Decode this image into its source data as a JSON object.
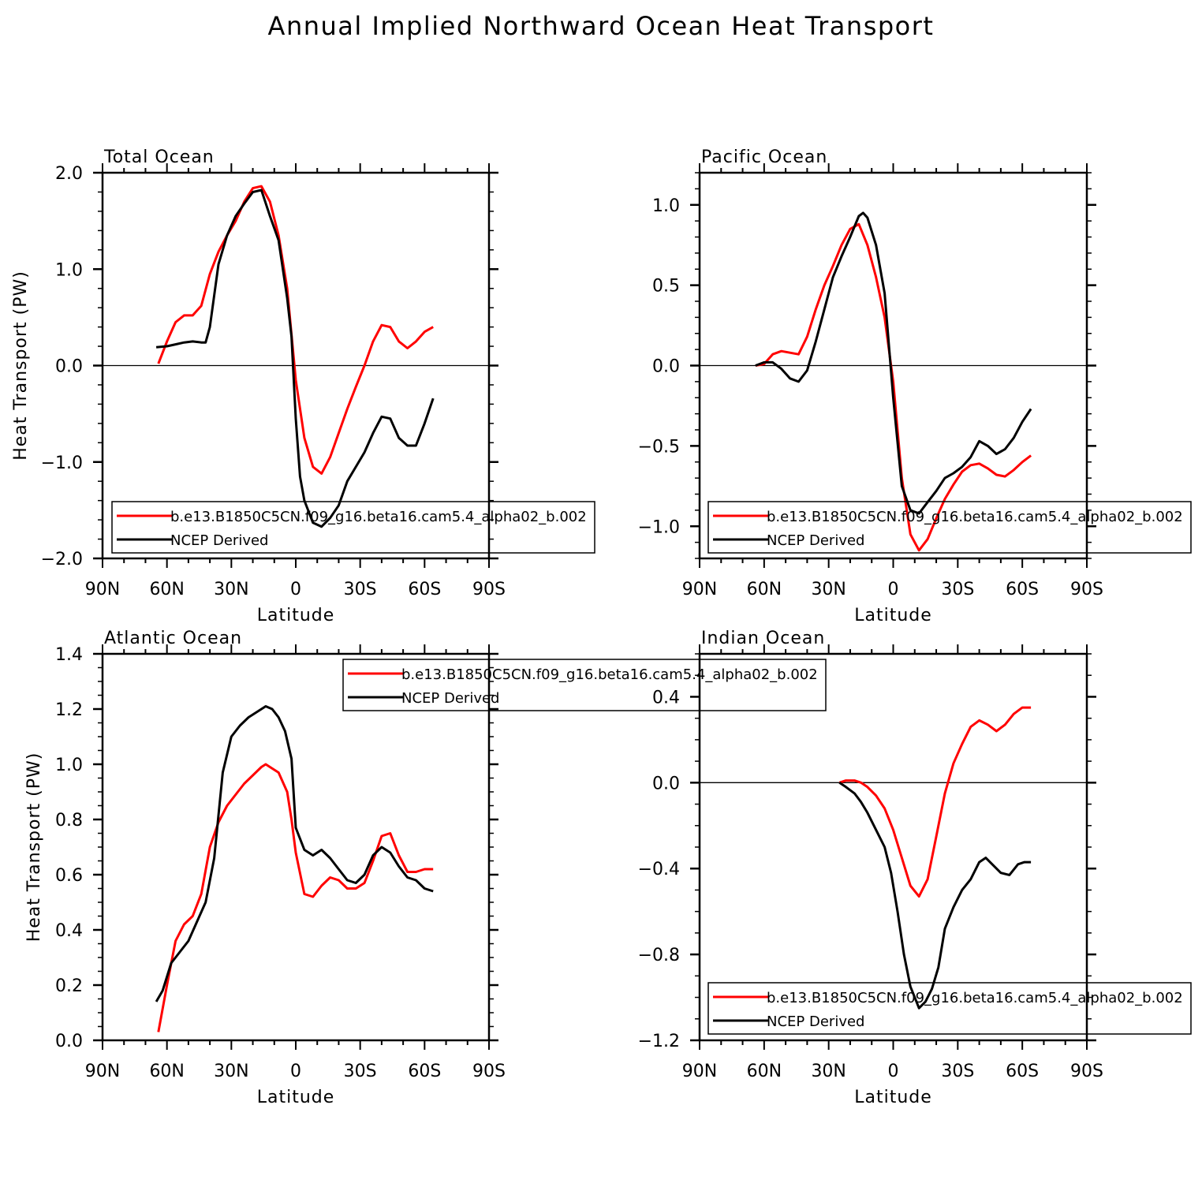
{
  "page": {
    "title": "Annual Implied Northward Ocean Heat Transport"
  },
  "colors": {
    "model": "#ff0000",
    "ncep": "#000000",
    "axis": "#000000"
  },
  "chart_data": [
    {
      "type": "line",
      "title": "Total Ocean",
      "xlabel": "Latitude",
      "ylabel": "Heat Transport (PW)",
      "xlim": [
        -90,
        90
      ],
      "ylim": [
        -2.0,
        2.0
      ],
      "xticks": [
        -90,
        -60,
        -30,
        0,
        30,
        60,
        90
      ],
      "xtick_labels": [
        "90N",
        "60N",
        "30N",
        "0",
        "30S",
        "60S",
        "90S"
      ],
      "yticks": [
        -2.0,
        -1.0,
        0.0,
        1.0,
        2.0
      ],
      "ytick_labels": [
        "−2.0",
        "−1.0",
        "0.0",
        "1.0",
        "2.0"
      ],
      "yminor": 0.2,
      "zero_line": true,
      "legend_position": "bottom",
      "series": [
        {
          "name": "b.e13.B1850C5CN.f09_g16.beta16.cam5.4_alpha02_b.002",
          "color": "#ff0000",
          "x": [
            -64,
            -60,
            -56,
            -52,
            -48,
            -44,
            -40,
            -36,
            -32,
            -28,
            -24,
            -20,
            -16,
            -12,
            -8,
            -4,
            0,
            4,
            8,
            12,
            16,
            20,
            24,
            28,
            32,
            36,
            40,
            44,
            48,
            52,
            56,
            60,
            64
          ],
          "y": [
            0.02,
            0.25,
            0.45,
            0.52,
            0.52,
            0.62,
            0.95,
            1.18,
            1.35,
            1.5,
            1.7,
            1.84,
            1.86,
            1.7,
            1.35,
            0.8,
            -0.15,
            -0.75,
            -1.05,
            -1.12,
            -0.95,
            -0.7,
            -0.45,
            -0.22,
            0.0,
            0.25,
            0.42,
            0.4,
            0.25,
            0.18,
            0.25,
            0.35,
            0.4
          ]
        },
        {
          "name": "NCEP Derived",
          "color": "#000000",
          "x": [
            -65,
            -60,
            -56,
            -52,
            -48,
            -44,
            -42,
            -40,
            -36,
            -32,
            -28,
            -24,
            -20,
            -16,
            -12,
            -8,
            -4,
            -2,
            0,
            2,
            4,
            8,
            12,
            16,
            20,
            24,
            28,
            32,
            36,
            40,
            44,
            48,
            52,
            56,
            60,
            64
          ],
          "y": [
            0.19,
            0.2,
            0.22,
            0.24,
            0.25,
            0.24,
            0.24,
            0.4,
            1.05,
            1.35,
            1.55,
            1.68,
            1.8,
            1.82,
            1.55,
            1.3,
            0.7,
            0.3,
            -0.55,
            -1.15,
            -1.4,
            -1.63,
            -1.67,
            -1.58,
            -1.45,
            -1.2,
            -1.05,
            -0.9,
            -0.7,
            -0.53,
            -0.55,
            -0.75,
            -0.83,
            -0.83,
            -0.6,
            -0.34
          ]
        }
      ]
    },
    {
      "type": "line",
      "title": "Pacific Ocean",
      "xlabel": "Latitude",
      "ylabel": "",
      "xlim": [
        -90,
        90
      ],
      "ylim": [
        -1.2,
        1.2
      ],
      "xticks": [
        -90,
        -60,
        -30,
        0,
        30,
        60,
        90
      ],
      "xtick_labels": [
        "90N",
        "60N",
        "30N",
        "0",
        "30S",
        "60S",
        "90S"
      ],
      "yticks": [
        -1.0,
        -0.5,
        0.0,
        0.5,
        1.0
      ],
      "ytick_labels": [
        "−1.0",
        "−0.5",
        "0.0",
        "0.5",
        "1.0"
      ],
      "yminor": 0.1,
      "zero_line": true,
      "legend_position": "bottom",
      "series": [
        {
          "name": "b.e13.B1850C5CN.f09_g16.beta16.cam5.4_alpha02_b.002",
          "color": "#ff0000",
          "x": [
            -64,
            -60,
            -56,
            -52,
            -48,
            -44,
            -40,
            -36,
            -32,
            -28,
            -24,
            -20,
            -16,
            -12,
            -8,
            -4,
            0,
            4,
            8,
            12,
            16,
            20,
            24,
            28,
            32,
            36,
            40,
            44,
            48,
            52,
            56,
            60,
            64
          ],
          "y": [
            0.0,
            0.01,
            0.07,
            0.09,
            0.08,
            0.07,
            0.18,
            0.35,
            0.5,
            0.62,
            0.75,
            0.85,
            0.88,
            0.75,
            0.55,
            0.3,
            -0.1,
            -0.7,
            -1.05,
            -1.15,
            -1.08,
            -0.95,
            -0.83,
            -0.74,
            -0.66,
            -0.62,
            -0.61,
            -0.64,
            -0.68,
            -0.69,
            -0.65,
            -0.6,
            -0.56
          ]
        },
        {
          "name": "NCEP Derived",
          "color": "#000000",
          "x": [
            -64,
            -60,
            -56,
            -52,
            -48,
            -44,
            -40,
            -36,
            -32,
            -28,
            -24,
            -20,
            -16,
            -14,
            -12,
            -8,
            -4,
            0,
            4,
            8,
            12,
            16,
            20,
            24,
            28,
            32,
            36,
            40,
            44,
            48,
            52,
            56,
            60,
            64
          ],
          "y": [
            0.0,
            0.02,
            0.02,
            -0.02,
            -0.08,
            -0.1,
            -0.03,
            0.15,
            0.35,
            0.55,
            0.68,
            0.8,
            0.93,
            0.95,
            0.92,
            0.75,
            0.45,
            -0.2,
            -0.75,
            -0.9,
            -0.92,
            -0.85,
            -0.78,
            -0.7,
            -0.67,
            -0.63,
            -0.57,
            -0.47,
            -0.5,
            -0.55,
            -0.52,
            -0.45,
            -0.35,
            -0.27
          ]
        }
      ]
    },
    {
      "type": "line",
      "title": "Atlantic Ocean",
      "xlabel": "Latitude",
      "ylabel": "Heat Transport (PW)",
      "xlim": [
        -90,
        90
      ],
      "ylim": [
        0.0,
        1.4
      ],
      "xticks": [
        -90,
        -60,
        -30,
        0,
        30,
        60,
        90
      ],
      "xtick_labels": [
        "90N",
        "60N",
        "30N",
        "0",
        "30S",
        "60S",
        "90S"
      ],
      "yticks": [
        0.0,
        0.2,
        0.4,
        0.6,
        0.8,
        1.0,
        1.2,
        1.4
      ],
      "ytick_labels": [
        "0.0",
        "0.2",
        "0.4",
        "0.6",
        "0.8",
        "1.0",
        "1.2",
        "1.4"
      ],
      "yminor": 0.05,
      "zero_line": false,
      "legend_position": "top-right",
      "series": [
        {
          "name": "b.e13.B1850C5CN.f09_g16.beta16.cam5.4_alpha02_b.002",
          "color": "#ff0000",
          "x": [
            -64,
            -60,
            -56,
            -52,
            -48,
            -44,
            -40,
            -36,
            -32,
            -28,
            -24,
            -20,
            -16,
            -14,
            -12,
            -8,
            -4,
            -2,
            0,
            4,
            8,
            12,
            16,
            20,
            24,
            28,
            32,
            36,
            40,
            44,
            48,
            52,
            56,
            60,
            64
          ],
          "y": [
            0.03,
            0.2,
            0.36,
            0.42,
            0.45,
            0.53,
            0.7,
            0.79,
            0.85,
            0.89,
            0.93,
            0.96,
            0.99,
            1.0,
            0.99,
            0.97,
            0.9,
            0.8,
            0.68,
            0.53,
            0.52,
            0.56,
            0.59,
            0.58,
            0.55,
            0.55,
            0.57,
            0.65,
            0.74,
            0.75,
            0.67,
            0.61,
            0.61,
            0.62,
            0.62
          ]
        },
        {
          "name": "NCEP Derived",
          "color": "#000000",
          "x": [
            -65,
            -62,
            -58,
            -54,
            -50,
            -46,
            -42,
            -38,
            -34,
            -30,
            -26,
            -22,
            -18,
            -14,
            -11,
            -8,
            -5,
            -2,
            0,
            4,
            8,
            12,
            16,
            20,
            24,
            28,
            32,
            36,
            40,
            44,
            48,
            52,
            56,
            60,
            64
          ],
          "y": [
            0.14,
            0.18,
            0.28,
            0.32,
            0.36,
            0.43,
            0.5,
            0.66,
            0.97,
            1.1,
            1.14,
            1.17,
            1.19,
            1.21,
            1.2,
            1.17,
            1.12,
            1.02,
            0.77,
            0.69,
            0.67,
            0.69,
            0.66,
            0.62,
            0.58,
            0.57,
            0.6,
            0.67,
            0.7,
            0.68,
            0.63,
            0.59,
            0.58,
            0.55,
            0.54
          ]
        }
      ]
    },
    {
      "type": "line",
      "title": "Indian Ocean",
      "xlabel": "Latitude",
      "ylabel": "",
      "xlim": [
        -90,
        90
      ],
      "ylim": [
        -1.2,
        0.6
      ],
      "xticks": [
        -90,
        -60,
        -30,
        0,
        30,
        60,
        90
      ],
      "xtick_labels": [
        "90N",
        "60N",
        "30N",
        "0",
        "30S",
        "60S",
        "90S"
      ],
      "yticks": [
        -1.2,
        -0.8,
        -0.4,
        0.0,
        0.4
      ],
      "ytick_labels": [
        "−1.2",
        "−0.8",
        "−0.4",
        "0.0",
        "0.4"
      ],
      "yminor": 0.1,
      "zero_line": true,
      "legend_position": "bottom",
      "series": [
        {
          "name": "b.e13.B1850C5CN.f09_g16.beta16.cam5.4_alpha02_b.002",
          "color": "#ff0000",
          "x": [
            -25,
            -22,
            -18,
            -15,
            -12,
            -8,
            -4,
            0,
            4,
            8,
            12,
            16,
            20,
            24,
            28,
            32,
            36,
            40,
            44,
            48,
            52,
            56,
            60,
            64
          ],
          "y": [
            0.0,
            0.01,
            0.01,
            0.0,
            -0.02,
            -0.06,
            -0.12,
            -0.22,
            -0.35,
            -0.48,
            -0.53,
            -0.45,
            -0.25,
            -0.05,
            0.09,
            0.18,
            0.26,
            0.29,
            0.27,
            0.24,
            0.27,
            0.32,
            0.35,
            0.35
          ]
        },
        {
          "name": "NCEP Derived",
          "color": "#000000",
          "x": [
            -25,
            -22,
            -18,
            -15,
            -12,
            -8,
            -4,
            -1,
            2,
            5,
            8,
            10,
            12,
            15,
            18,
            21,
            24,
            28,
            32,
            36,
            40,
            43,
            46,
            50,
            54,
            58,
            61,
            64
          ],
          "y": [
            0.0,
            -0.02,
            -0.05,
            -0.09,
            -0.14,
            -0.22,
            -0.3,
            -0.42,
            -0.6,
            -0.8,
            -0.95,
            -1.0,
            -1.05,
            -1.02,
            -0.96,
            -0.86,
            -0.68,
            -0.58,
            -0.5,
            -0.45,
            -0.37,
            -0.35,
            -0.38,
            -0.42,
            -0.43,
            -0.38,
            -0.37,
            -0.37
          ]
        }
      ]
    }
  ]
}
